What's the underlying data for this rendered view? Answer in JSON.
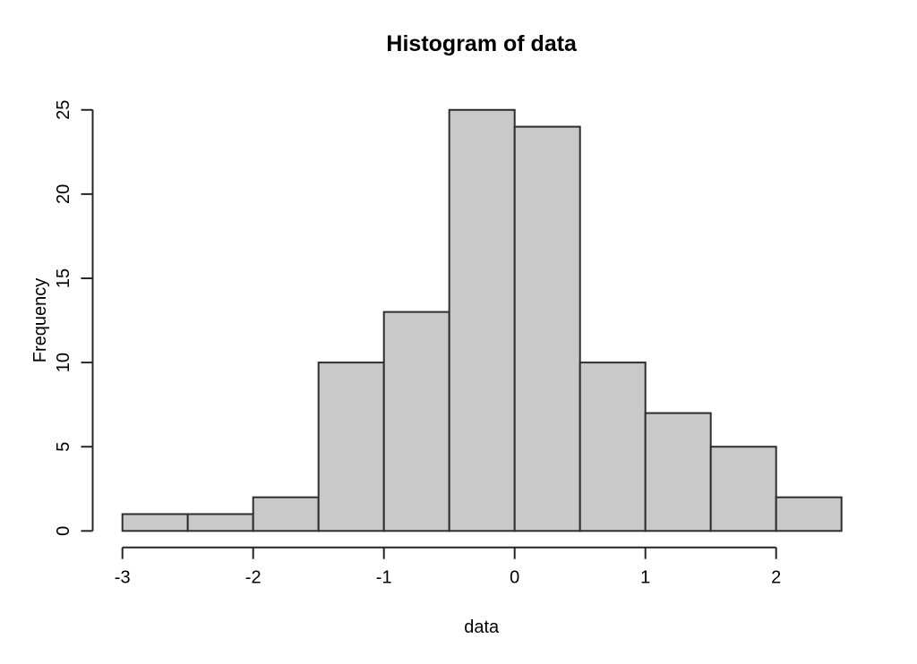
{
  "chart_data": {
    "type": "bar",
    "variant": "histogram",
    "title": "Histogram of data",
    "xlabel": "data",
    "ylabel": "Frequency",
    "bin_breaks": [
      -3,
      -2.5,
      -2,
      -1.5,
      -1,
      -0.5,
      0,
      0.5,
      1,
      1.5,
      2,
      2.5
    ],
    "bin_counts": [
      1,
      1,
      2,
      10,
      13,
      25,
      24,
      10,
      7,
      5,
      2
    ],
    "x_ticks": [
      "-3",
      "-2",
      "-1",
      "0",
      "1",
      "2"
    ],
    "x_tick_values": [
      -3,
      -2,
      -1,
      0,
      1,
      2
    ],
    "y_ticks": [
      "0",
      "5",
      "10",
      "15",
      "20",
      "25"
    ],
    "y_tick_values": [
      0,
      5,
      10,
      15,
      20,
      25
    ],
    "xlim": [
      -3,
      2.5
    ],
    "ylim": [
      0,
      25
    ],
    "x_axis_span": [
      -3,
      2
    ],
    "grid": false,
    "legend": null,
    "colors": {
      "bar_fill": "#c9c9c9",
      "bar_stroke": "#2e2e2e",
      "axis": "#262626",
      "text": "#000000",
      "background": "#ffffff"
    }
  }
}
